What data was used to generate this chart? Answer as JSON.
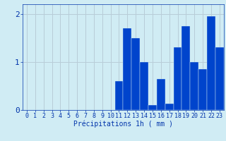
{
  "categories": [
    0,
    1,
    2,
    3,
    4,
    5,
    6,
    7,
    8,
    9,
    10,
    11,
    12,
    13,
    14,
    15,
    16,
    17,
    18,
    19,
    20,
    21,
    22,
    23
  ],
  "values": [
    0,
    0,
    0,
    0,
    0,
    0,
    0,
    0,
    0,
    0,
    0,
    0.6,
    1.7,
    1.5,
    1.0,
    0.1,
    0.65,
    0.13,
    1.3,
    1.75,
    1.0,
    0.85,
    1.95,
    1.3
  ],
  "bar_color": "#0044cc",
  "background_color": "#d0ecf4",
  "grid_color": "#b8cdd8",
  "axis_color": "#0033aa",
  "xlabel": "Précipitations 1h ( mm )",
  "xlabel_fontsize": 7,
  "tick_fontsize": 6,
  "ylim": [
    0,
    2.2
  ],
  "yticks": [
    0,
    1,
    2
  ],
  "xlim_left": -0.5,
  "xlim_right": 23.5
}
